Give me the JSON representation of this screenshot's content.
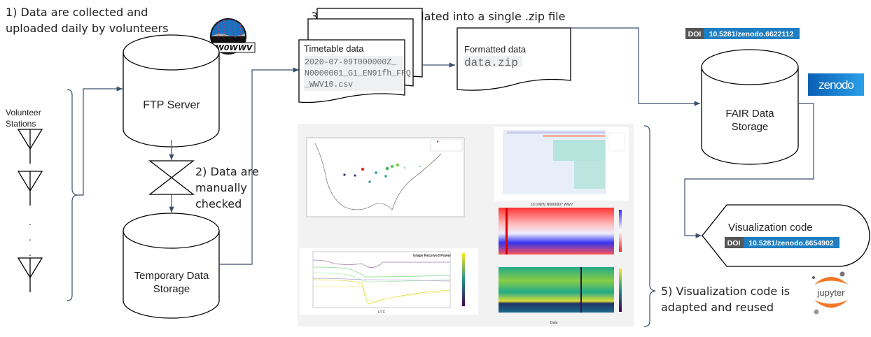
{
  "steps": {
    "step1": [
      "1) Data are collected and",
      "uploaded daily by volunteers"
    ],
    "step2": [
      "2) Data are",
      "manually",
      "checked"
    ],
    "step3": "3) Data are consolidated into a single .zip file",
    "step5": [
      "5) Visualization code is",
      "adapted and reused"
    ]
  },
  "stations": {
    "label": [
      "Volunteer",
      "Stations"
    ],
    "ellipsis": "."
  },
  "ftp_server": {
    "label": "FTP Server",
    "logo_text": "WW0WWV"
  },
  "temporary_storage": {
    "label": [
      "Temporary Data",
      "Storage"
    ]
  },
  "timetable_doc": {
    "title": "Timetable data",
    "filename": [
      "2020-07-09T000000Z_",
      "N0000001_G1_EN91fh_FRQ",
      "_WWV10.csv"
    ]
  },
  "formatted_doc": {
    "title": "Formatted data",
    "filename": "data.zip"
  },
  "fair_storage": {
    "label": [
      "FAIR Data",
      "Storage"
    ],
    "doi_prefix": "DOI",
    "doi": "10.5281/zenodo.6622112",
    "logo_text": "zenodo"
  },
  "visualization": {
    "label": "Visualization code",
    "doi_prefix": "DOI",
    "doi": "10.5281/zenodo.6654902",
    "logo_text": "jupyter"
  },
  "figures": {
    "line_title": "Grape Received Power",
    "line_xlabel": "UTC",
    "heatmap_title": "10.0 MHz N0000007 WWV",
    "heatmap_xlabel": "Date"
  },
  "colors": {
    "doi_dark": "#555555",
    "doi_blue": "#1d7ec2",
    "zenodo": "#1177cc",
    "jupyter_orange": "#f37726",
    "flow": "#3c4f6e"
  }
}
